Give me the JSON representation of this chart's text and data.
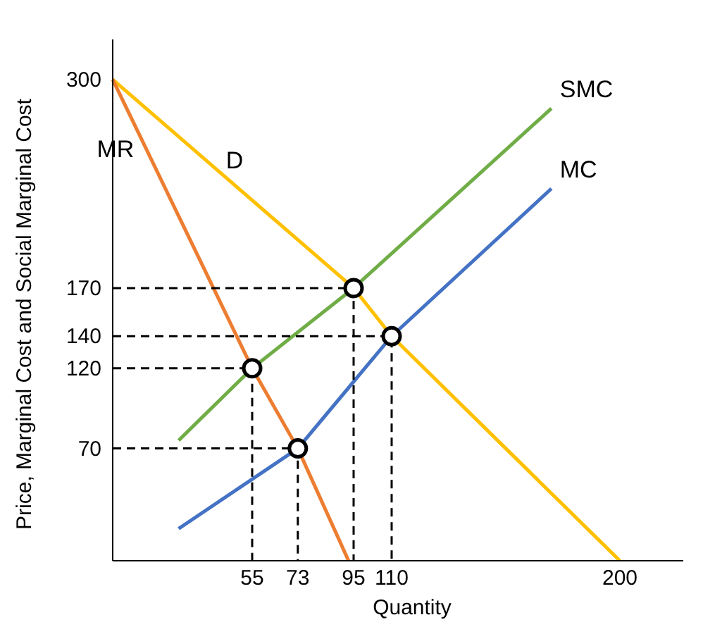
{
  "chart_data": {
    "type": "line",
    "xlabel": "Quantity",
    "ylabel": "Price, Marginal Cost and Social Marginal Cost",
    "xlim": [
      0,
      225
    ],
    "ylim": [
      0,
      325
    ],
    "xticks": [
      55,
      73,
      95,
      110,
      200
    ],
    "yticks": [
      70,
      120,
      140,
      170,
      300
    ],
    "grid": false,
    "series": [
      {
        "name": "D",
        "color": "#ffc000",
        "x": [
          0,
          95,
          110,
          200
        ],
        "values": [
          300,
          170,
          140,
          0
        ]
      },
      {
        "name": "MR",
        "color": "#ed7d31",
        "x": [
          0,
          55,
          73,
          93
        ],
        "values": [
          300,
          120,
          70,
          0
        ]
      },
      {
        "name": "MC",
        "color": "#4472c4",
        "x": [
          26,
          73,
          110,
          173
        ],
        "values": [
          20,
          70,
          140,
          232
        ]
      },
      {
        "name": "SMC",
        "color": "#70ad47",
        "x": [
          26,
          55,
          95,
          173
        ],
        "values": [
          75,
          120,
          170,
          282
        ]
      },
      {
        "color": "#000000",
        "line_style": "dashed",
        "x": [
          0,
          55,
          55
        ],
        "values": [
          120,
          120,
          0
        ]
      },
      {
        "color": "#000000",
        "line_style": "dashed",
        "x": [
          0,
          73,
          73
        ],
        "values": [
          70,
          70,
          0
        ]
      },
      {
        "color": "#000000",
        "line_style": "dashed",
        "x": [
          0,
          95,
          95
        ],
        "values": [
          170,
          170,
          0
        ]
      },
      {
        "color": "#000000",
        "line_style": "dashed",
        "x": [
          0,
          110,
          110
        ],
        "values": [
          140,
          140,
          0
        ]
      },
      {
        "type": "scatter",
        "marker": "circle",
        "color": "#000000",
        "x": [
          55,
          73,
          95,
          110
        ],
        "values": [
          120,
          70,
          170,
          140
        ]
      }
    ]
  }
}
